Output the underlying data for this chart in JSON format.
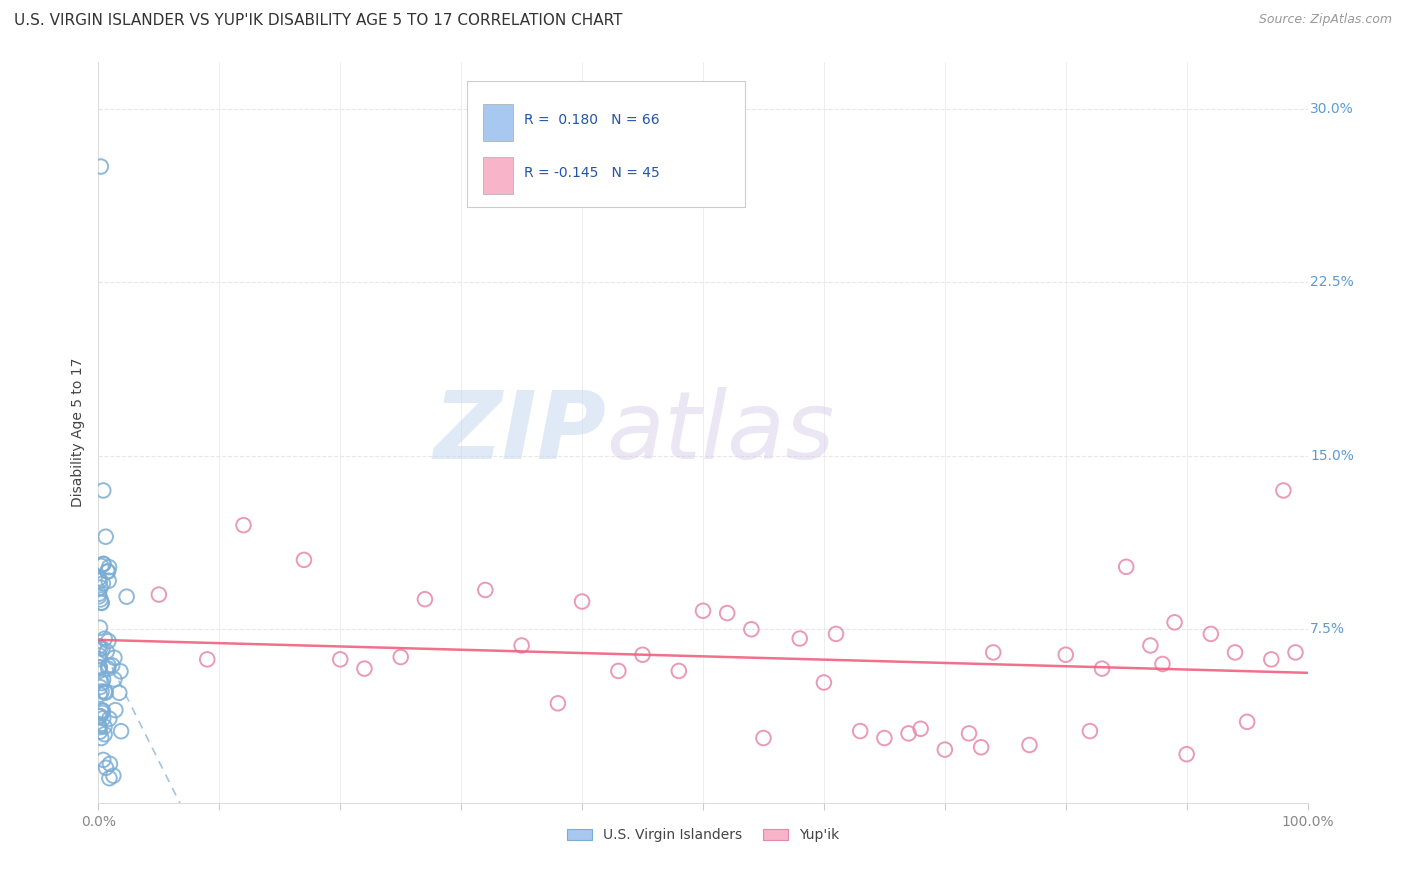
{
  "title": "U.S. VIRGIN ISLANDER VS YUP'IK DISABILITY AGE 5 TO 17 CORRELATION CHART",
  "source": "Source: ZipAtlas.com",
  "ylabel": "Disability Age 5 to 17",
  "xlim": [
    0.0,
    1.0
  ],
  "ylim": [
    0.0,
    0.32
  ],
  "blue_color": "#A8C8F0",
  "blue_edge_color": "#7BADD4",
  "pink_color": "#F8B4C8",
  "pink_edge_color": "#E888A8",
  "blue_line_color": "#7BADD4",
  "pink_line_color": "#F06080",
  "tick_color_right": "#5B9BD5",
  "tick_color_bottom": "#888888",
  "R_blue": 0.18,
  "N_blue": 66,
  "R_pink": -0.145,
  "N_pink": 45,
  "title_fontsize": 11,
  "source_fontsize": 9,
  "axis_label_fontsize": 10,
  "tick_fontsize": 10,
  "background_color": "#FFFFFF",
  "grid_color": "#E8E8E8",
  "watermark_zip": "ZIP",
  "watermark_atlas": "atlas",
  "watermark_color_zip": "#C8D8F0",
  "watermark_color_atlas": "#D8C8E8"
}
